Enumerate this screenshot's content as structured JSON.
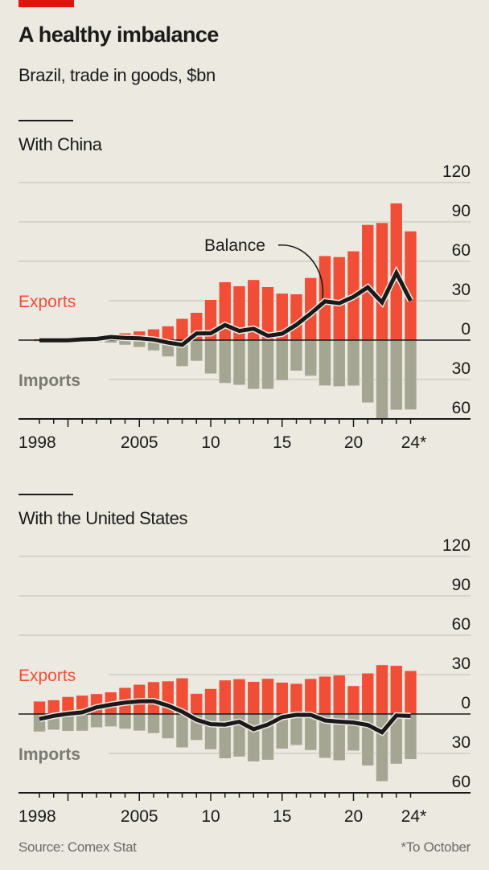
{
  "header": {
    "title": "A healthy imbalance",
    "subtitle": "Brazil, trade in goods, $bn"
  },
  "footer": {
    "source": "Source: Comex Stat",
    "note": "*To October"
  },
  "colors": {
    "exports": "#f04e37",
    "imports": "#a5a593",
    "balance": "#1a1a1a",
    "grid": "#cfccc1",
    "tag": "#e3120b",
    "background": "#ebe9e0"
  },
  "chart_data": [
    {
      "type": "bar",
      "title": "With China",
      "series_labels": {
        "exports": "Exports",
        "imports": "Imports",
        "balance": "Balance"
      },
      "x": [
        1998,
        1999,
        2000,
        2001,
        2002,
        2003,
        2004,
        2005,
        2006,
        2007,
        2008,
        2009,
        2010,
        2011,
        2012,
        2013,
        2014,
        2015,
        2016,
        2017,
        2018,
        2019,
        2020,
        2021,
        2022,
        2023,
        2024
      ],
      "x_tick_labels": [
        {
          "year": 1998,
          "label": "1998"
        },
        {
          "year": 2005,
          "label": "2005"
        },
        {
          "year": 2010,
          "label": "10"
        },
        {
          "year": 2015,
          "label": "15"
        },
        {
          "year": 2020,
          "label": "20"
        },
        {
          "year": 2024,
          "label": "24*"
        }
      ],
      "series": [
        {
          "name": "Exports",
          "values": [
            0.9,
            0.7,
            1.1,
            1.9,
            2.5,
            4.5,
            5.4,
            6.8,
            8.4,
            10.7,
            16.4,
            21.0,
            30.8,
            44.3,
            41.2,
            46.0,
            40.6,
            35.6,
            35.1,
            47.5,
            64.2,
            63.4,
            67.8,
            87.9,
            89.4,
            104.3,
            83.0
          ]
        },
        {
          "name": "Imports",
          "values": [
            1.0,
            0.9,
            1.2,
            1.3,
            1.6,
            2.1,
            3.7,
            5.4,
            8.0,
            12.6,
            20.0,
            15.9,
            25.6,
            32.8,
            34.2,
            37.3,
            37.3,
            30.7,
            23.4,
            27.3,
            34.7,
            35.3,
            34.8,
            47.7,
            60.7,
            53.2,
            53.0
          ]
        },
        {
          "name": "Balance",
          "values": [
            -0.1,
            -0.2,
            -0.1,
            0.6,
            0.9,
            2.4,
            1.7,
            1.4,
            0.4,
            -1.9,
            -3.6,
            5.1,
            5.2,
            11.5,
            7.0,
            8.7,
            3.3,
            4.9,
            11.7,
            20.2,
            29.5,
            28.1,
            33.0,
            40.2,
            28.7,
            51.1,
            30.0
          ]
        }
      ],
      "ylim": [
        -60,
        120
      ],
      "y_ticks": [
        120,
        90,
        60,
        30,
        0,
        -30,
        -60
      ],
      "y_tick_labels": [
        "120",
        "90",
        "60",
        "30",
        "0",
        "30",
        "60"
      ],
      "grid": true,
      "annotation": "Balance"
    },
    {
      "type": "bar",
      "title": "With the United States",
      "series_labels": {
        "exports": "Exports",
        "imports": "Imports"
      },
      "x": [
        1998,
        1999,
        2000,
        2001,
        2002,
        2003,
        2004,
        2005,
        2006,
        2007,
        2008,
        2009,
        2010,
        2011,
        2012,
        2013,
        2014,
        2015,
        2016,
        2017,
        2018,
        2019,
        2020,
        2021,
        2022,
        2023,
        2024
      ],
      "x_tick_labels": [
        {
          "year": 1998,
          "label": "1998"
        },
        {
          "year": 2005,
          "label": "2005"
        },
        {
          "year": 2010,
          "label": "10"
        },
        {
          "year": 2015,
          "label": "15"
        },
        {
          "year": 2020,
          "label": "20"
        },
        {
          "year": 2024,
          "label": "24*"
        }
      ],
      "series": [
        {
          "name": "Exports",
          "values": [
            9.7,
            10.7,
            13.2,
            14.2,
            15.4,
            16.7,
            20.1,
            22.5,
            24.5,
            25.1,
            27.4,
            15.6,
            19.3,
            25.8,
            26.7,
            24.7,
            27.0,
            24.1,
            23.2,
            26.9,
            28.7,
            29.6,
            21.5,
            31.1,
            37.4,
            36.9,
            33.0
          ]
        },
        {
          "name": "Imports",
          "values": [
            13.5,
            12.1,
            13.0,
            12.9,
            10.3,
            9.6,
            11.4,
            12.8,
            14.7,
            18.7,
            25.6,
            20.0,
            27.0,
            33.9,
            32.6,
            36.3,
            35.0,
            26.5,
            23.8,
            27.6,
            33.6,
            35.4,
            28.0,
            39.4,
            51.3,
            38.0,
            34.5
          ]
        },
        {
          "name": "Balance",
          "values": [
            -3.8,
            -1.4,
            0.2,
            1.3,
            5.1,
            7.1,
            8.7,
            9.7,
            9.8,
            6.4,
            1.8,
            -4.4,
            -7.7,
            -8.1,
            -5.9,
            -11.6,
            -8.0,
            -2.4,
            -0.6,
            -0.7,
            -4.9,
            -5.8,
            -6.5,
            -8.3,
            -13.9,
            -1.1,
            -1.5
          ]
        }
      ],
      "ylim": [
        -60,
        120
      ],
      "y_ticks": [
        120,
        90,
        60,
        30,
        0,
        -30,
        -60
      ],
      "y_tick_labels": [
        "120",
        "90",
        "60",
        "30",
        "0",
        "30",
        "60"
      ],
      "grid": true
    }
  ]
}
